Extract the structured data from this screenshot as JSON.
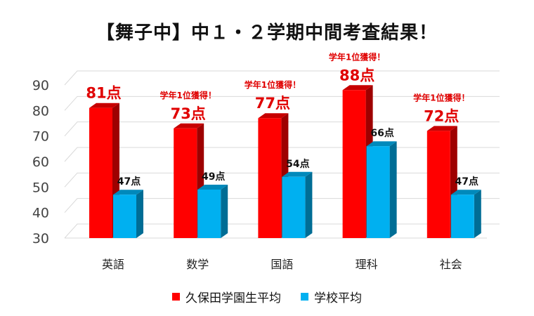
{
  "chart_data": {
    "type": "bar",
    "title": "【舞子中】中１・２学期中間考査結果！",
    "categories": [
      "英語",
      "数学",
      "国語",
      "理科",
      "社会"
    ],
    "ylim": [
      30,
      90
    ],
    "yticks": [
      30,
      40,
      50,
      60,
      70,
      80,
      90
    ],
    "grid": true,
    "legend_position": "bottom",
    "series": [
      {
        "name": "久保田学園生平均",
        "values": [
          81,
          73,
          77,
          88,
          72
        ],
        "labels": [
          "81点",
          "73点",
          "77点",
          "88点",
          "72点"
        ],
        "color": "#ff0000"
      },
      {
        "name": "学校平均",
        "values": [
          47,
          49,
          54,
          66,
          47
        ],
        "labels": [
          "47点",
          "49点",
          "54点",
          "66点",
          "47点"
        ],
        "color": "#00b0f0"
      }
    ],
    "annotations": [
      "",
      "学年1位獲得！",
      "学年1位獲得！",
      "学年1位獲得！",
      "学年1位獲得！"
    ],
    "annotation_color": "#e00000"
  }
}
